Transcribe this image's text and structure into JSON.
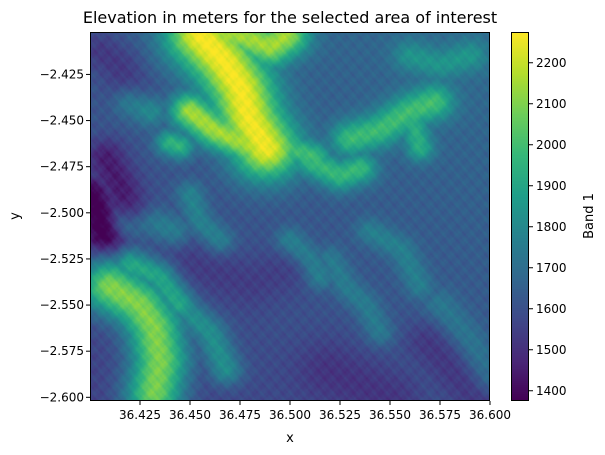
{
  "chart_data": {
    "type": "heatmap",
    "title": "Elevation in meters for the selected area of interest",
    "xlabel": "x",
    "ylabel": "y",
    "xlim": [
      36.4,
      36.6
    ],
    "ylim": [
      -2.602,
      -2.402
    ],
    "x_ticks": [
      36.425,
      36.45,
      36.475,
      36.5,
      36.525,
      36.55,
      36.575,
      36.6
    ],
    "x_tick_labels": [
      "36.425",
      "36.450",
      "36.475",
      "36.500",
      "36.525",
      "36.550",
      "36.575",
      "36.600"
    ],
    "y_ticks": [
      -2.425,
      -2.45,
      -2.475,
      -2.5,
      -2.525,
      -2.55,
      -2.575,
      -2.6
    ],
    "y_tick_labels": [
      "−2.425",
      "−2.450",
      "−2.475",
      "−2.500",
      "−2.525",
      "−2.550",
      "−2.575",
      "−2.600"
    ],
    "colorbar": {
      "label": "Band 1",
      "colormap": "viridis",
      "vmin": 1375,
      "vmax": 2275,
      "ticks": [
        1400,
        1500,
        1600,
        1700,
        1800,
        1900,
        2000,
        2100,
        2200
      ],
      "tick_labels": [
        "1400",
        "1500",
        "1600",
        "1700",
        "1800",
        "1900",
        "2000",
        "2100",
        "2200"
      ]
    },
    "base_elevation": 1620,
    "features": [
      {
        "kind": "ridge",
        "path": [
          [
            36.455,
            -2.404
          ],
          [
            36.467,
            -2.418
          ],
          [
            36.475,
            -2.432
          ],
          [
            36.48,
            -2.45
          ],
          [
            36.488,
            -2.465
          ]
        ],
        "peak": 2250,
        "width": 0.012
      },
      {
        "kind": "ridge",
        "path": [
          [
            36.462,
            -2.402
          ],
          [
            36.478,
            -2.405
          ],
          [
            36.49,
            -2.41
          ],
          [
            36.498,
            -2.404
          ]
        ],
        "peak": 2120,
        "width": 0.008
      },
      {
        "kind": "ridge",
        "path": [
          [
            36.45,
            -2.445
          ],
          [
            36.462,
            -2.455
          ],
          [
            36.476,
            -2.462
          ],
          [
            36.488,
            -2.47
          ]
        ],
        "peak": 2150,
        "width": 0.007
      },
      {
        "kind": "ridge",
        "path": [
          [
            36.49,
            -2.455
          ],
          [
            36.5,
            -2.465
          ],
          [
            36.512,
            -2.47
          ]
        ],
        "peak": 1980,
        "width": 0.006
      },
      {
        "kind": "ridge",
        "path": [
          [
            36.44,
            -2.462
          ],
          [
            36.445,
            -2.464
          ]
        ],
        "peak": 1960,
        "width": 0.005
      },
      {
        "kind": "ridge",
        "path": [
          [
            36.41,
            -2.54
          ],
          [
            36.425,
            -2.55
          ],
          [
            36.432,
            -2.562
          ],
          [
            36.435,
            -2.58
          ],
          [
            36.432,
            -2.598
          ]
        ],
        "peak": 2150,
        "width": 0.01
      },
      {
        "kind": "ridge",
        "path": [
          [
            36.42,
            -2.528
          ],
          [
            36.435,
            -2.535
          ],
          [
            36.445,
            -2.55
          ]
        ],
        "peak": 1950,
        "width": 0.006
      },
      {
        "kind": "ridge",
        "path": [
          [
            36.45,
            -2.555
          ],
          [
            36.46,
            -2.565
          ],
          [
            36.468,
            -2.585
          ]
        ],
        "peak": 1860,
        "width": 0.006
      },
      {
        "kind": "ridge",
        "path": [
          [
            36.53,
            -2.46
          ],
          [
            36.545,
            -2.455
          ],
          [
            36.56,
            -2.445
          ],
          [
            36.572,
            -2.44
          ]
        ],
        "peak": 1960,
        "width": 0.007
      },
      {
        "kind": "ridge",
        "path": [
          [
            36.51,
            -2.472
          ],
          [
            36.525,
            -2.48
          ],
          [
            36.535,
            -2.476
          ]
        ],
        "peak": 1960,
        "width": 0.006
      },
      {
        "kind": "ridge",
        "path": [
          [
            36.56,
            -2.445
          ],
          [
            36.565,
            -2.465
          ]
        ],
        "peak": 1900,
        "width": 0.005
      },
      {
        "kind": "ridge",
        "path": [
          [
            36.5,
            -2.515
          ],
          [
            36.51,
            -2.525
          ],
          [
            36.515,
            -2.535
          ]
        ],
        "peak": 1790,
        "width": 0.005
      },
      {
        "kind": "ridge",
        "path": [
          [
            36.52,
            -2.525
          ],
          [
            36.528,
            -2.54
          ],
          [
            36.538,
            -2.55
          ],
          [
            36.545,
            -2.565
          ]
        ],
        "peak": 1760,
        "width": 0.005
      },
      {
        "kind": "ridge",
        "path": [
          [
            36.54,
            -2.51
          ],
          [
            36.556,
            -2.52
          ],
          [
            36.565,
            -2.54
          ]
        ],
        "peak": 1760,
        "width": 0.005
      },
      {
        "kind": "ridge",
        "path": [
          [
            36.42,
            -2.505
          ],
          [
            36.432,
            -2.505
          ],
          [
            36.442,
            -2.51
          ]
        ],
        "peak": 1780,
        "width": 0.006
      },
      {
        "kind": "ridge",
        "path": [
          [
            36.45,
            -2.49
          ],
          [
            36.455,
            -2.505
          ],
          [
            36.465,
            -2.515
          ]
        ],
        "peak": 1790,
        "width": 0.005
      },
      {
        "kind": "ridge",
        "path": [
          [
            36.575,
            -2.55
          ],
          [
            36.59,
            -2.57
          ],
          [
            36.6,
            -2.59
          ]
        ],
        "peak": 1740,
        "width": 0.006
      },
      {
        "kind": "ridge",
        "path": [
          [
            36.56,
            -2.415
          ],
          [
            36.575,
            -2.42
          ],
          [
            36.59,
            -2.415
          ]
        ],
        "peak": 1790,
        "width": 0.006
      },
      {
        "kind": "ridge",
        "path": [
          [
            36.42,
            -2.44
          ],
          [
            36.43,
            -2.445
          ]
        ],
        "peak": 1820,
        "width": 0.006
      },
      {
        "kind": "valley",
        "path": [
          [
            36.4,
            -2.49
          ],
          [
            36.404,
            -2.5
          ],
          [
            36.407,
            -2.512
          ]
        ],
        "depth": 1380,
        "width": 0.007
      },
      {
        "kind": "valley",
        "path": [
          [
            36.408,
            -2.47
          ],
          [
            36.415,
            -2.485
          ],
          [
            36.42,
            -2.5
          ]
        ],
        "depth": 1460,
        "width": 0.007
      },
      {
        "kind": "valley",
        "path": [
          [
            36.405,
            -2.412
          ],
          [
            36.415,
            -2.42
          ],
          [
            36.42,
            -2.435
          ]
        ],
        "depth": 1520,
        "width": 0.008
      },
      {
        "kind": "valley",
        "path": [
          [
            36.52,
            -2.585
          ],
          [
            36.55,
            -2.6
          ]
        ],
        "depth": 1540,
        "width": 0.012
      },
      {
        "kind": "valley",
        "path": [
          [
            36.57,
            -2.57
          ],
          [
            36.595,
            -2.6
          ]
        ],
        "depth": 1530,
        "width": 0.009
      },
      {
        "kind": "valley",
        "path": [
          [
            36.45,
            -2.528
          ],
          [
            36.48,
            -2.538
          ],
          [
            36.5,
            -2.53
          ]
        ],
        "depth": 1560,
        "width": 0.01
      }
    ]
  }
}
